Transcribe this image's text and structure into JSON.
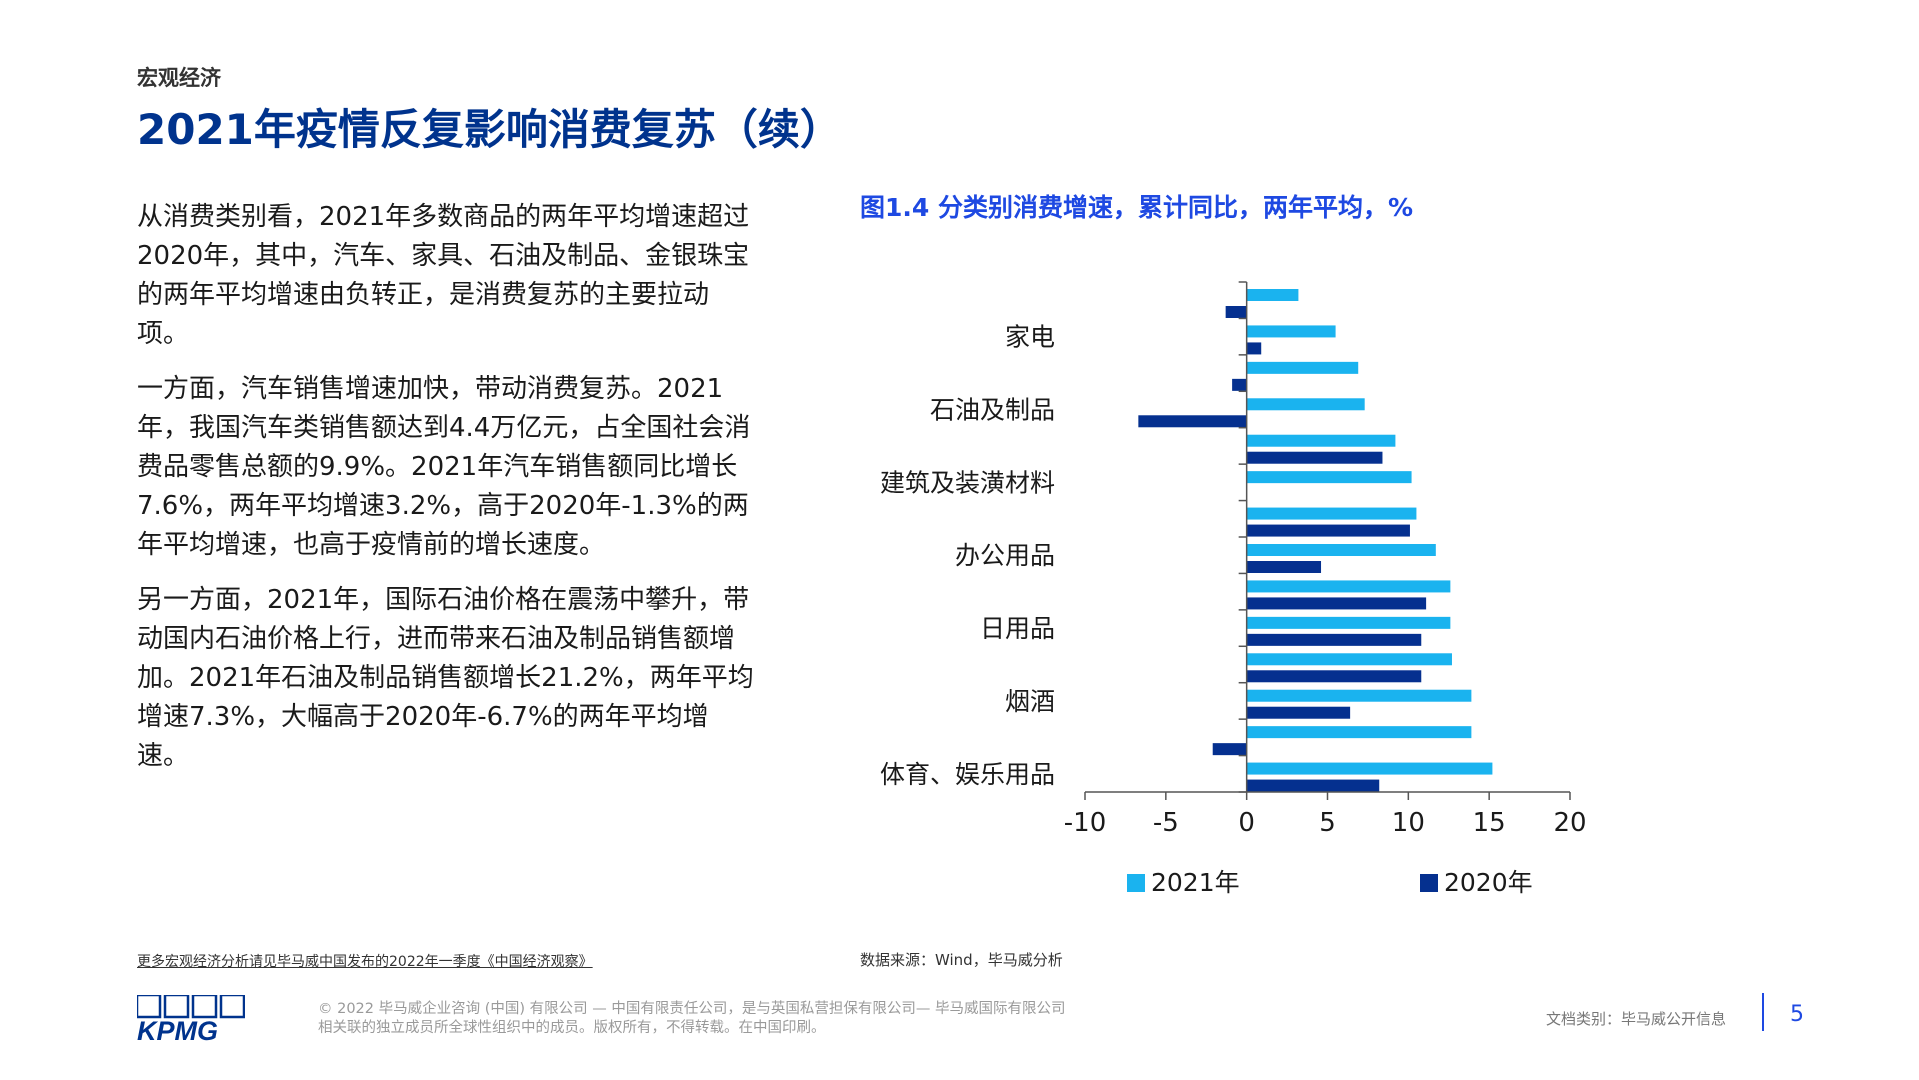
{
  "header": {
    "section": "宏观经济",
    "title": "2021年疫情反复影响消费复苏（续）"
  },
  "body": {
    "paragraphs": [
      "从消费类别看，2021年多数商品的两年平均增速超过2020年，其中，汽车、家具、石油及制品、金银珠宝的两年平均增速由负转正，是消费复苏的主要拉动项。",
      "一方面，汽车销售增速加快，带动消费复苏。2021年，我国汽车类销售额达到4.4万亿元，占全国社会消费品零售总额的9.9%。2021年汽车销售额同比增长7.6%，两年平均增速3.2%，高于2020年-1.3%的两年平均增速，也高于疫情前的增长速度。",
      "另一方面，2021年，国际石油价格在震荡中攀升，带动国内石油价格上行，进而带来石油及制品销售额增加。2021年石油及制品销售额增长21.2%，两年平均增速7.3%，大幅高于2020年-6.7%的两年平均增速。"
    ]
  },
  "chart_data": {
    "type": "bar",
    "orientation": "horizontal",
    "title": "图1.4 分类别消费增速，累计同比，两年平均，%",
    "categories": [
      "",
      "家电",
      "",
      "石油及制品",
      "",
      "建筑及装潢材料",
      "",
      "办公用品",
      "",
      "日用品",
      "",
      "烟酒",
      "",
      "体育、娱乐用品"
    ],
    "series": [
      {
        "name": "2021年",
        "color": "#1ab3ef",
        "values": [
          3.2,
          5.5,
          6.9,
          7.3,
          9.2,
          10.2,
          10.5,
          11.7,
          12.6,
          12.6,
          12.7,
          13.9,
          13.9,
          15.2
        ]
      },
      {
        "name": "2020年",
        "color": "#05308f",
        "values": [
          -1.3,
          0.9,
          -0.9,
          -6.7,
          8.4,
          null,
          10.1,
          4.6,
          11.1,
          10.8,
          10.8,
          6.4,
          -2.1,
          8.2
        ]
      }
    ],
    "xlim": [
      -10,
      20
    ],
    "xticks": [
      -10,
      -5,
      0,
      5,
      10,
      15,
      20
    ],
    "legend_position": "bottom",
    "grid": false
  },
  "footer": {
    "more_link": "更多宏观经济分析请见毕马威中国发布的2022年一季度《中国经济观察》",
    "source": "数据来源：Wind，毕马威分析",
    "copyright_line1": "© 2022 毕马威企业咨询 (中国) 有限公司 — 中国有限责任公司，是与英国私营担保有限公司— 毕马威国际有限公司",
    "copyright_line2": "相关联的独立成员所全球性组织中的成员。版权所有，不得转载。在中国印刷。",
    "doc_class": "文档类别：毕马威公开信息",
    "page_number": "5",
    "logo_text": "KPMG"
  },
  "colors": {
    "brand_blue": "#00338d",
    "accent_blue": "#1e49e2",
    "series_2021": "#1ab3ef",
    "series_2020": "#05308f"
  }
}
